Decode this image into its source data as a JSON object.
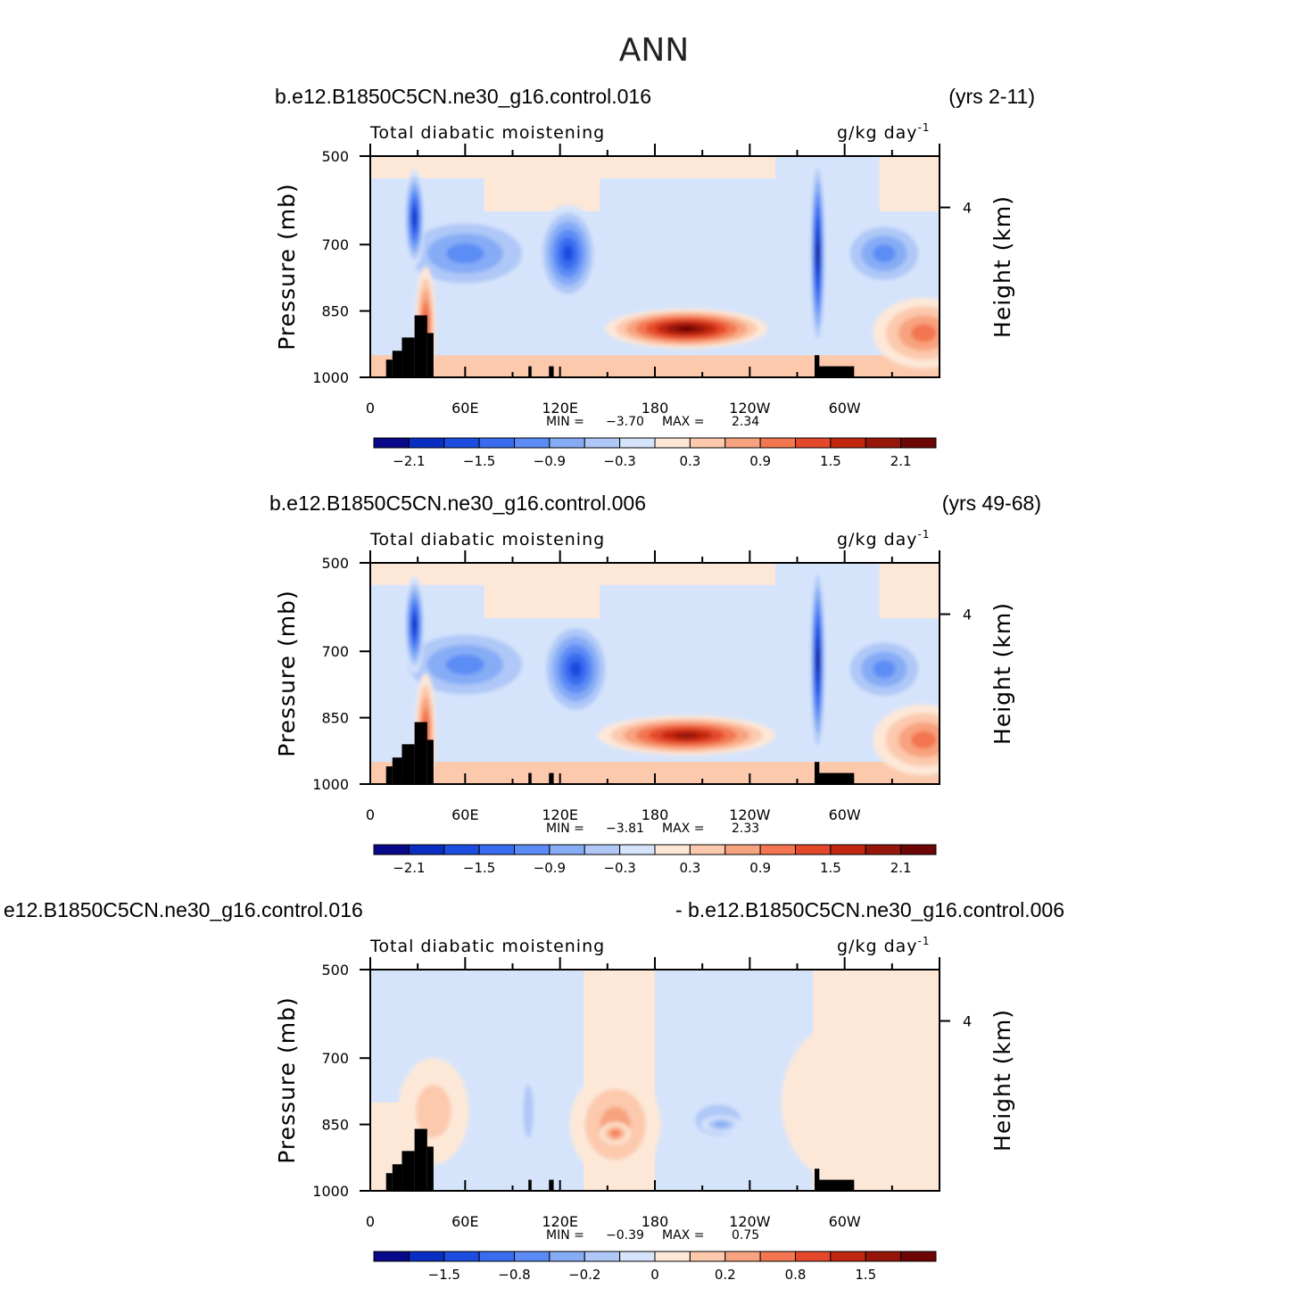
{
  "title": "ANN",
  "palette": [
    "#08088a",
    "#0a2ec2",
    "#1c4ce0",
    "#3a6cf0",
    "#5b8cf5",
    "#86acf6",
    "#afc8f7",
    "#d6e4fb",
    "#fde8d8",
    "#fcc9ad",
    "#f8a37f",
    "#f37650",
    "#e4482b",
    "#c2280f",
    "#96170a",
    "#6e0606"
  ],
  "chart_data": [
    {
      "type": "contour",
      "case_label": "b.e12.B1850C5CN.ne30_g16.control.016",
      "right_label": "(yrs 2-11)",
      "variable": "Total diabatic moistening",
      "units_main": "g/kg day",
      "units_exp": "-1",
      "ylabel": "Pressure (mb)",
      "ylabel_right": "Height (km)",
      "y_ticks": [
        "500",
        "700",
        "850",
        "1000"
      ],
      "y_right_ticks": [
        "4"
      ],
      "x_ticks": [
        "0",
        "60E",
        "120E",
        "180",
        "120W",
        "60W"
      ],
      "min_label": "MIN =",
      "min_value": "−3.70",
      "max_label": "MAX =",
      "max_value": "2.34",
      "colorbar_labels": [
        "−2.1",
        "−1.5",
        "−0.9",
        "−0.3",
        "0.3",
        "0.9",
        "1.5",
        "2.1"
      ],
      "features": [
        {
          "lon": 200,
          "p": 890,
          "level": 15,
          "rx": 32,
          "ry": 45
        },
        {
          "lon": 125,
          "p": 720,
          "level": 2,
          "rx": 12,
          "ry": 110
        },
        {
          "lon": 60,
          "p": 720,
          "level": 4,
          "rx": 30,
          "ry": 90
        },
        {
          "lon": 28,
          "p": 640,
          "level": 1,
          "rx": 4,
          "ry": 110
        },
        {
          "lon": 35,
          "p": 880,
          "level": 12,
          "rx": 4,
          "ry": 130
        },
        {
          "lon": 283,
          "p": 720,
          "level": 0,
          "rx": 3,
          "ry": 220
        },
        {
          "lon": 325,
          "p": 720,
          "level": 4,
          "rx": 18,
          "ry": 80
        },
        {
          "lon": 350,
          "p": 900,
          "level": 11,
          "rx": 20,
          "ry": 80
        }
      ]
    },
    {
      "type": "contour",
      "case_label": "b.e12.B1850C5CN.ne30_g16.control.006",
      "right_label": "(yrs 49-68)",
      "variable": "Total diabatic moistening",
      "units_main": "g/kg day",
      "units_exp": "-1",
      "ylabel": "Pressure (mb)",
      "ylabel_right": "Height (km)",
      "y_ticks": [
        "500",
        "700",
        "850",
        "1000"
      ],
      "y_right_ticks": [
        "4"
      ],
      "x_ticks": [
        "0",
        "60E",
        "120E",
        "180",
        "120W",
        "60W"
      ],
      "min_label": "MIN =",
      "min_value": "−3.81",
      "max_label": "MAX =",
      "max_value": "2.33",
      "colorbar_labels": [
        "−2.1",
        "−1.5",
        "−0.9",
        "−0.3",
        "0.3",
        "0.9",
        "1.5",
        "2.1"
      ],
      "features": [
        {
          "lon": 200,
          "p": 890,
          "level": 14,
          "rx": 35,
          "ry": 45
        },
        {
          "lon": 130,
          "p": 740,
          "level": 2,
          "rx": 14,
          "ry": 110
        },
        {
          "lon": 60,
          "p": 730,
          "level": 4,
          "rx": 30,
          "ry": 90
        },
        {
          "lon": 28,
          "p": 640,
          "level": 1,
          "rx": 4,
          "ry": 110
        },
        {
          "lon": 35,
          "p": 880,
          "level": 12,
          "rx": 4,
          "ry": 130
        },
        {
          "lon": 283,
          "p": 720,
          "level": 0,
          "rx": 3,
          "ry": 220
        },
        {
          "lon": 325,
          "p": 740,
          "level": 4,
          "rx": 18,
          "ry": 80
        },
        {
          "lon": 350,
          "p": 900,
          "level": 11,
          "rx": 20,
          "ry": 80
        }
      ]
    },
    {
      "type": "contour",
      "case_label": "e12.B1850C5CN.ne30_g16.control.016",
      "right_label": "- b.e12.B1850C5CN.ne30_g16.control.006",
      "variable": "Total diabatic moistening",
      "units_main": "g/kg day",
      "units_exp": "-1",
      "ylabel": "Pressure (mb)",
      "ylabel_right": "Height (km)",
      "y_ticks": [
        "500",
        "700",
        "850",
        "1000"
      ],
      "y_right_ticks": [
        "4"
      ],
      "x_ticks": [
        "0",
        "60E",
        "120E",
        "180",
        "120W",
        "60W"
      ],
      "min_label": "MIN =",
      "min_value": "−0.39",
      "max_label": "MAX =",
      "max_value": "0.75",
      "colorbar_labels": [
        "−1.5",
        "−0.8",
        "−0.2",
        "0",
        "0.2",
        "0.8",
        "1.5"
      ],
      "features": [
        {
          "lon": 155,
          "p": 850,
          "level": 10,
          "rx": 18,
          "ry": 120
        },
        {
          "lon": 155,
          "p": 870,
          "level": 11,
          "rx": 6,
          "ry": 25
        },
        {
          "lon": 220,
          "p": 840,
          "level": 6,
          "rx": 18,
          "ry": 70
        },
        {
          "lon": 222,
          "p": 850,
          "level": 5,
          "rx": 8,
          "ry": 20
        },
        {
          "lon": 100,
          "p": 820,
          "level": 6,
          "rx": 4,
          "ry": 120
        },
        {
          "lon": 40,
          "p": 820,
          "level": 9,
          "rx": 14,
          "ry": 120
        },
        {
          "lon": 300,
          "p": 800,
          "level": 8,
          "rx": 25,
          "ry": 180
        }
      ]
    }
  ]
}
